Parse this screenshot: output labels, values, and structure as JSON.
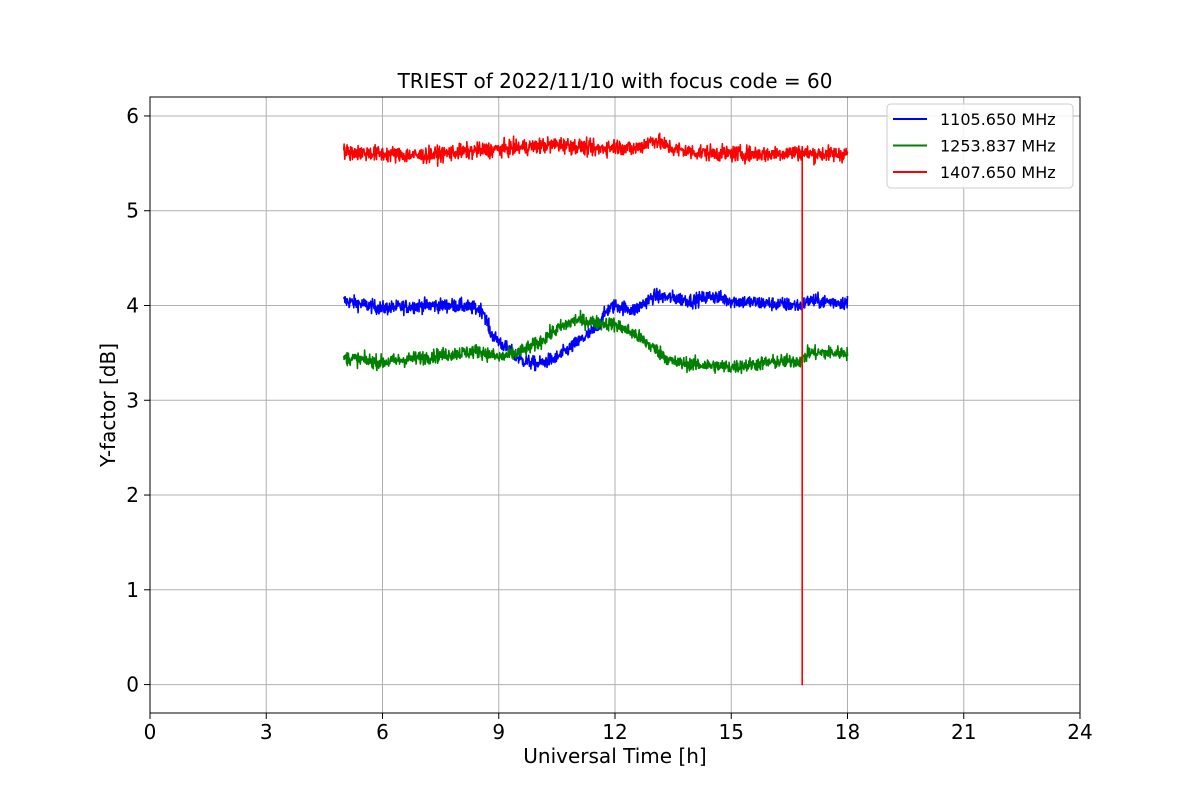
{
  "chart_data": {
    "type": "line",
    "title": "TRIEST of 2022/11/10 with focus code = 60",
    "xlabel": "Universal Time [h]",
    "ylabel": "Y-factor [dB]",
    "xlim": [
      0,
      24
    ],
    "ylim": [
      -0.3,
      6.2
    ],
    "xticks": [
      0,
      3,
      6,
      9,
      12,
      15,
      18,
      21,
      24
    ],
    "xtick_labels": [
      "0",
      "3",
      "6",
      "9",
      "12",
      "15",
      "18",
      "21",
      "24"
    ],
    "yticks": [
      0,
      1,
      2,
      3,
      4,
      5,
      6
    ],
    "ytick_labels": [
      "0",
      "1",
      "2",
      "3",
      "4",
      "5",
      "6"
    ],
    "grid": true,
    "legend_position": "top-right",
    "series": [
      {
        "name": "1105.650 MHz",
        "color": "#0000ff",
        "noise": 0.07,
        "x": [
          5.0,
          6.0,
          7.0,
          8.0,
          8.6,
          8.8,
          9.2,
          9.6,
          10.0,
          10.5,
          11.0,
          11.5,
          11.8,
          12.0,
          12.5,
          13.0,
          13.5,
          14.0,
          14.5,
          15.0,
          16.0,
          16.8,
          17.0,
          18.0
        ],
        "y": [
          4.05,
          3.97,
          4.0,
          4.0,
          3.95,
          3.7,
          3.55,
          3.42,
          3.38,
          3.45,
          3.6,
          3.75,
          3.95,
          4.0,
          3.95,
          4.1,
          4.08,
          4.05,
          4.1,
          4.05,
          4.02,
          4.0,
          4.05,
          4.03
        ]
      },
      {
        "name": "1253.837 MHz",
        "color": "#008000",
        "noise": 0.07,
        "x": [
          5.0,
          6.0,
          7.0,
          8.0,
          8.5,
          9.0,
          9.5,
          10.0,
          10.5,
          11.0,
          11.5,
          12.0,
          12.5,
          13.0,
          13.5,
          14.0,
          15.0,
          16.0,
          16.8,
          17.0,
          18.0
        ],
        "y": [
          3.45,
          3.4,
          3.45,
          3.5,
          3.52,
          3.45,
          3.5,
          3.6,
          3.75,
          3.85,
          3.82,
          3.8,
          3.7,
          3.55,
          3.4,
          3.38,
          3.35,
          3.4,
          3.42,
          3.5,
          3.5
        ]
      },
      {
        "name": "1407.650 MHz",
        "color": "#ff0000",
        "noise": 0.08,
        "x": [
          5.0,
          6.0,
          7.0,
          8.0,
          9.0,
          10.0,
          10.5,
          11.0,
          11.5,
          12.0,
          12.5,
          13.0,
          13.5,
          14.0,
          15.0,
          16.0,
          16.8,
          17.0,
          18.0
        ],
        "y": [
          5.62,
          5.6,
          5.58,
          5.62,
          5.65,
          5.68,
          5.7,
          5.68,
          5.65,
          5.68,
          5.65,
          5.75,
          5.65,
          5.62,
          5.6,
          5.6,
          5.62,
          5.6,
          5.6
        ],
        "dropout_x": 16.83
      }
    ]
  }
}
